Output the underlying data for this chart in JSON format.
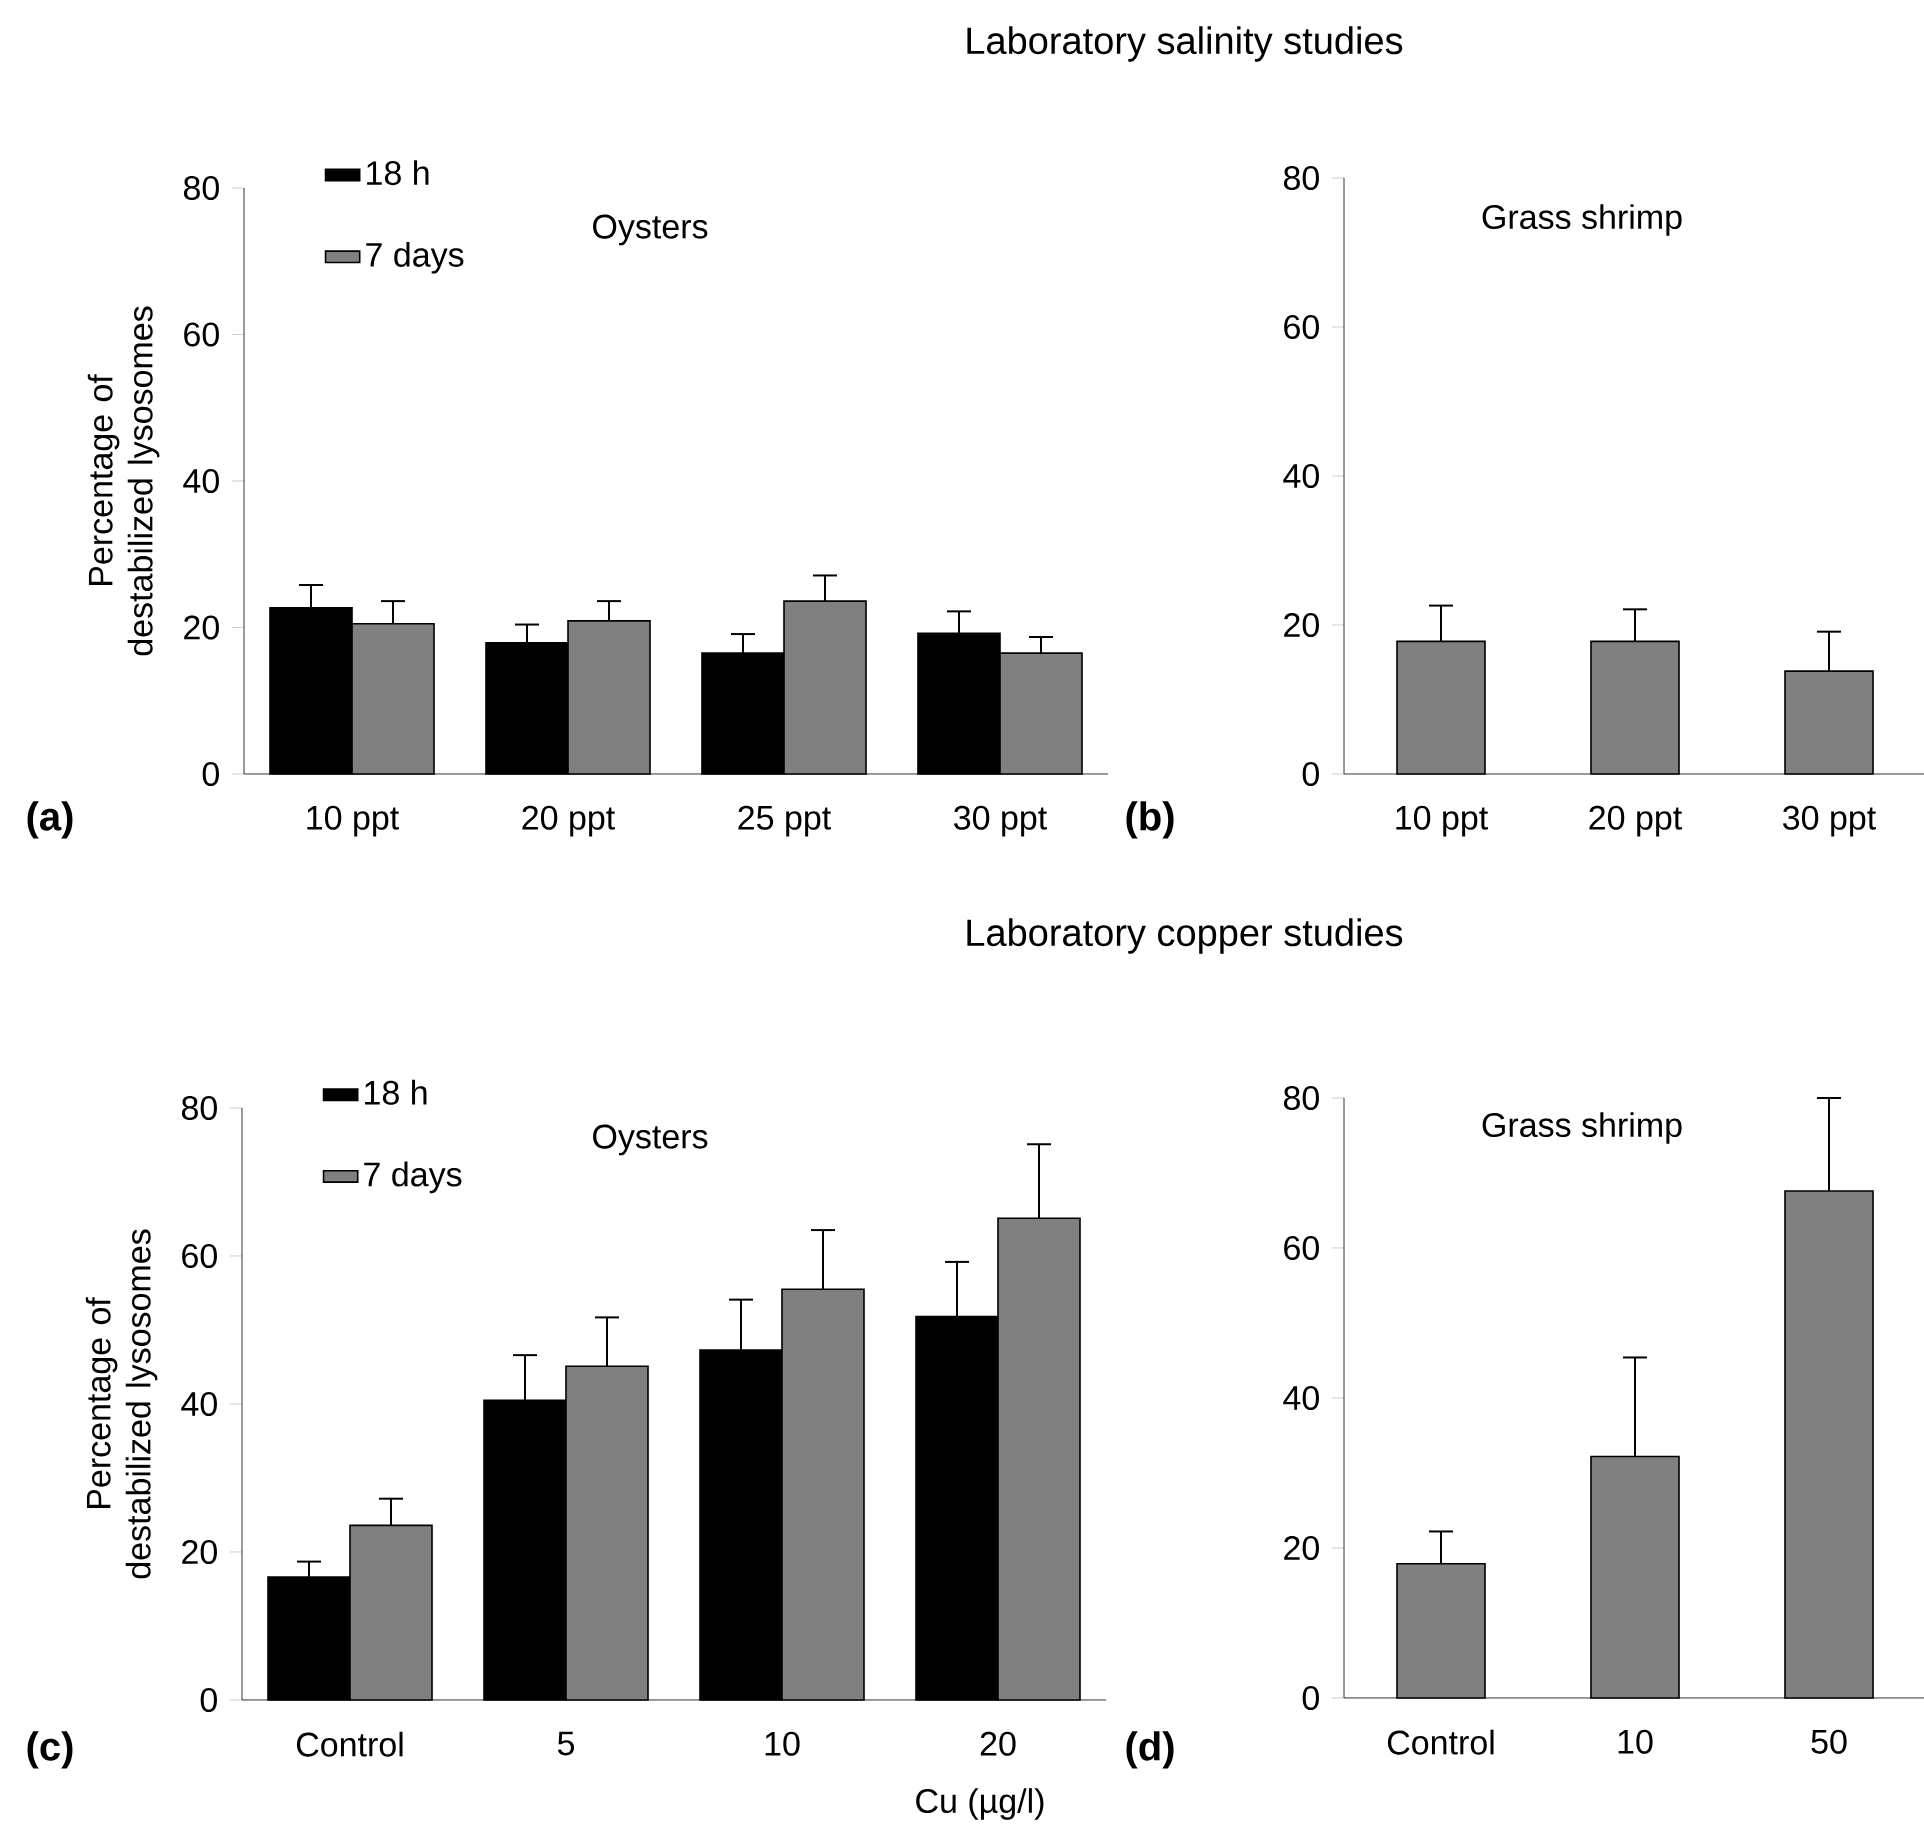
{
  "chart_data": [
    {
      "type": "bar",
      "title": "Laboratory salinity studies",
      "subtitle": "Oysters",
      "ylabel": "Percentage of destabilized lysosomes",
      "annotations": [
        "(a)"
      ],
      "categories": [
        "10 ppt",
        "20 ppt",
        "25 ppt",
        "30 ppt"
      ],
      "series": [
        {
          "name": "18 h",
          "color": "#000000",
          "values": [
            22.7,
            17.9,
            16.5,
            19.2
          ],
          "errors": [
            [
              22.7,
              25.8
            ],
            [
              17.9,
              20.4
            ],
            [
              16.5,
              19.1
            ],
            [
              19.2,
              22.2
            ]
          ]
        },
        {
          "name": "7 days",
          "color": "#808080",
          "values": [
            20.5,
            20.9,
            23.6,
            16.5
          ],
          "errors": [
            [
              20.5,
              23.6
            ],
            [
              20.9,
              23.6
            ],
            [
              23.6,
              27.1
            ],
            [
              16.5,
              18.7
            ]
          ]
        }
      ],
      "ylim": [
        0,
        80
      ],
      "yticks": [
        0,
        20,
        40,
        60,
        80
      ],
      "legend": "top left"
    },
    {
      "type": "bar",
      "subtitle": "Grass shrimp",
      "annotations": [
        "(b)"
      ],
      "categories": [
        "10 ppt",
        "20 ppt",
        "30 ppt"
      ],
      "series": [
        {
          "color": "#808080",
          "values": [
            17.8,
            17.8,
            13.8
          ],
          "errors": [
            [
              17.8,
              22.6
            ],
            [
              17.8,
              22.1
            ],
            [
              13.8,
              19.1
            ]
          ]
        }
      ],
      "ylim": [
        0,
        80
      ],
      "yticks": [
        0,
        20,
        40,
        60,
        80
      ]
    },
    {
      "type": "bar",
      "title": "Laboratory copper studies",
      "subtitle": "Oysters",
      "ylabel": "Percentage of destabilized lysosomes",
      "xlabel": "Cu (µg/l)",
      "annotations": [
        "(c)"
      ],
      "categories": [
        "Control",
        "5",
        "10",
        "20"
      ],
      "series": [
        {
          "name": "18 h",
          "color": "#000000",
          "values": [
            16.6,
            40.5,
            47.3,
            51.8
          ],
          "errors": [
            [
              16.6,
              18.7
            ],
            [
              40.5,
              46.6
            ],
            [
              47.3,
              54.1
            ],
            [
              51.8,
              59.2
            ]
          ]
        },
        {
          "name": "7 days",
          "color": "#808080",
          "values": [
            23.6,
            45.1,
            55.5,
            65.1
          ],
          "errors": [
            [
              23.6,
              27.2
            ],
            [
              45.1,
              51.7
            ],
            [
              55.5,
              63.5
            ],
            [
              65.1,
              75.1
            ]
          ]
        }
      ],
      "ylim": [
        0,
        80
      ],
      "yticks": [
        0,
        20,
        40,
        60,
        80
      ],
      "legend": "top left"
    },
    {
      "type": "bar",
      "subtitle": "Grass shrimp",
      "annotations": [
        "(d)"
      ],
      "categories": [
        "Control",
        "10",
        "50"
      ],
      "series": [
        {
          "color": "#808080",
          "values": [
            17.9,
            32.2,
            67.6
          ],
          "errors": [
            [
              17.9,
              22.2
            ],
            [
              32.2,
              45.4
            ],
            [
              67.6,
              80
            ]
          ]
        }
      ],
      "ylim": [
        0,
        80
      ],
      "yticks": [
        0,
        20,
        40,
        60,
        80
      ]
    }
  ]
}
